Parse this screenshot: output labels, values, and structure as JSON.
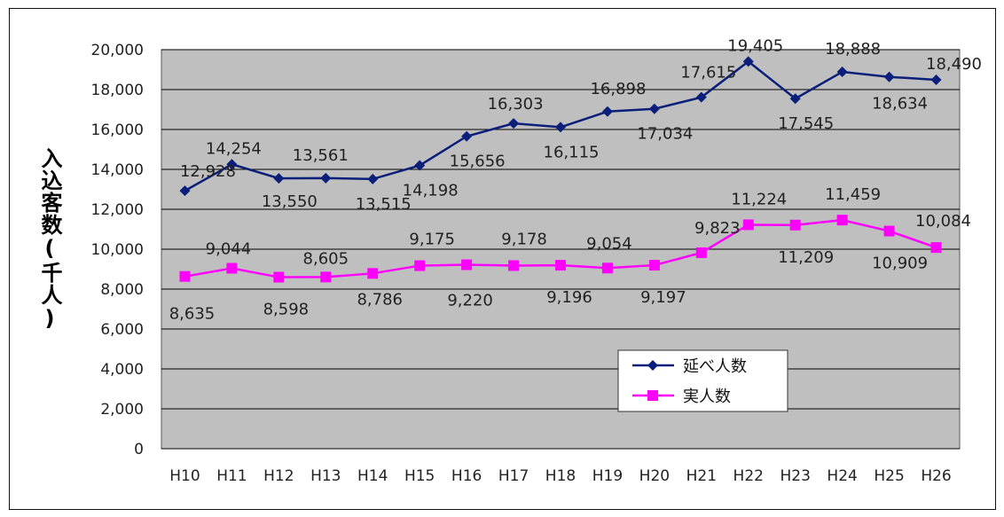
{
  "chart_data": {
    "type": "line",
    "categories": [
      "H10",
      "H11",
      "H12",
      "H13",
      "H14",
      "H15",
      "H16",
      "H17",
      "H18",
      "H19",
      "H20",
      "H21",
      "H22",
      "H23",
      "H24",
      "H25",
      "H26"
    ],
    "ylabel": "入込客数(千人)",
    "ylim": [
      0,
      20000
    ],
    "yticks": [
      0,
      2000,
      4000,
      6000,
      8000,
      10000,
      12000,
      14000,
      16000,
      18000,
      20000
    ],
    "ytick_labels": [
      "0",
      "2,000",
      "4,000",
      "6,000",
      "8,000",
      "10,000",
      "12,000",
      "14,000",
      "16,000",
      "18,000",
      "20,000"
    ],
    "grid": true,
    "legend_position": "bottom-right",
    "series": [
      {
        "name": "延べ人数",
        "color": "#0b1f7a",
        "marker": "diamond",
        "values": [
          12928,
          14254,
          13550,
          13561,
          13515,
          14198,
          15656,
          16303,
          16115,
          16898,
          17034,
          17615,
          19405,
          17545,
          18888,
          18634,
          18490
        ],
        "labels": [
          "12,928",
          "14,254",
          "13,550",
          "13,561",
          "13,515",
          "14,198",
          "15,656",
          "16,303",
          "16,115",
          "16,898",
          "17,034",
          "17,615",
          "19,405",
          "17,545",
          "18,888",
          "18,634",
          "18,490"
        ]
      },
      {
        "name": "実人数",
        "color": "#ff00ff",
        "marker": "square",
        "values": [
          8635,
          9044,
          8598,
          8605,
          8786,
          9175,
          9220,
          9178,
          9196,
          9054,
          9197,
          9823,
          11224,
          11209,
          11459,
          10909,
          10084
        ],
        "labels": [
          "8,635",
          "9,044",
          "8,598",
          "8,605",
          "8,786",
          "9,175",
          "9,220",
          "9,178",
          "9,196",
          "9,054",
          "9,197",
          "9,823",
          "11,224",
          "11,209",
          "11,459",
          "10,909",
          "10,084"
        ]
      }
    ]
  }
}
